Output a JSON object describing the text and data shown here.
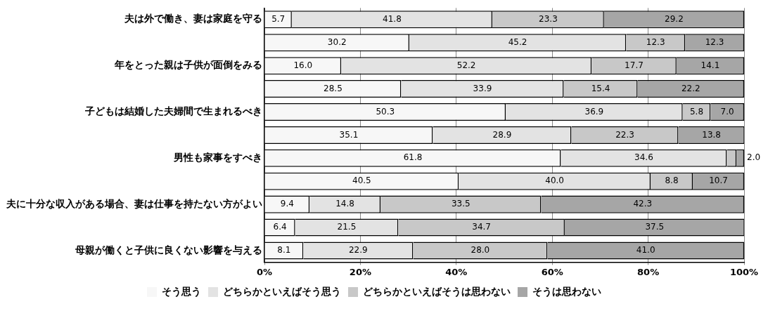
{
  "chart_data": {
    "type": "bar",
    "orientation": "horizontal",
    "stacked": true,
    "categories": [
      "夫は外で働き、妻は家庭を守る",
      null,
      "年をとった親は子供が面倒をみる",
      null,
      "子どもは結婚した夫婦間で生まれるべき",
      null,
      "男性も家事をすべき",
      null,
      "夫に十分な収入がある場合、妻は仕事を持たない方がよい",
      null,
      "母親が働くと子供に良くない影響を与える"
    ],
    "series": [
      {
        "name": "そう思う",
        "color": "#f7f7f7",
        "values": [
          5.7,
          30.2,
          16.0,
          28.5,
          50.3,
          35.1,
          61.8,
          40.5,
          9.4,
          6.4,
          8.1
        ],
        "value_labels": [
          "5.7",
          "30.2",
          "16.0",
          "28.5",
          "50.3",
          "35.1",
          "61.8",
          "40.5",
          "9.4",
          "6.4",
          "8.1"
        ]
      },
      {
        "name": "どちらかといえばそう思う",
        "color": "#e3e3e3",
        "values": [
          41.8,
          45.2,
          52.2,
          33.9,
          36.9,
          28.9,
          34.6,
          40.0,
          14.8,
          21.5,
          22.9
        ],
        "value_labels": [
          "41.8",
          "45.2",
          "52.2",
          "33.9",
          "36.9",
          "28.9",
          "34.6",
          "40.0",
          "14.8",
          "21.5",
          "22.9"
        ]
      },
      {
        "name": "どちらかといえばそうは思わない",
        "color": "#c8c8c8",
        "values": [
          23.3,
          12.3,
          17.7,
          15.4,
          5.8,
          22.3,
          2.0,
          8.8,
          33.5,
          34.7,
          28.0
        ],
        "value_labels": [
          "23.3",
          "12.3",
          "17.7",
          "15.4",
          "5.8",
          "22.3",
          "2.0",
          "8.8",
          "33.5",
          "34.7",
          "28.0"
        ]
      },
      {
        "name": "そうは思わない",
        "color": "#a6a6a6",
        "values": [
          29.2,
          12.3,
          14.1,
          22.2,
          7.0,
          13.8,
          1.6,
          10.7,
          42.3,
          37.5,
          41.0
        ],
        "value_labels": [
          "29.2",
          "12.3",
          "14.1",
          "22.2",
          "7.0",
          "13.8",
          null,
          "10.7",
          "42.3",
          "37.5",
          "41.0"
        ]
      }
    ],
    "xlim": [
      0,
      100
    ],
    "xticks": [
      {
        "value": 0,
        "label": "0%"
      },
      {
        "value": 20,
        "label": "20%"
      },
      {
        "value": 40,
        "label": "40%"
      },
      {
        "value": 60,
        "label": "60%"
      },
      {
        "value": 80,
        "label": "80%"
      },
      {
        "value": 100,
        "label": "100%"
      }
    ],
    "grid": "x",
    "legend": "bottom"
  }
}
